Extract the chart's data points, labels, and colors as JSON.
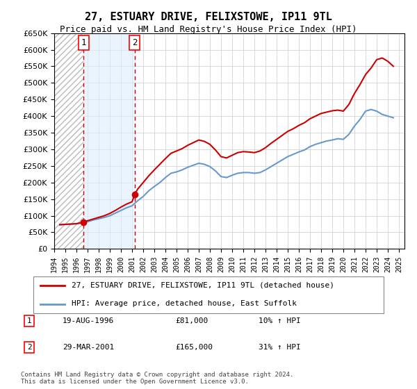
{
  "title": "27, ESTUARY DRIVE, FELIXSTOWE, IP11 9TL",
  "subtitle": "Price paid vs. HM Land Registry's House Price Index (HPI)",
  "ylim": [
    0,
    650000
  ],
  "yticks": [
    0,
    50000,
    100000,
    150000,
    200000,
    250000,
    300000,
    350000,
    400000,
    450000,
    500000,
    550000,
    600000,
    650000
  ],
  "xlim_start": 1994.0,
  "xlim_end": 2025.5,
  "purchase_dates": [
    1996.637,
    2001.247
  ],
  "purchase_prices": [
    81000,
    165000
  ],
  "purchase_labels": [
    "1",
    "2"
  ],
  "purchase_info": [
    {
      "label": "1",
      "date": "19-AUG-1996",
      "price": "£81,000",
      "hpi": "10% ↑ HPI"
    },
    {
      "label": "2",
      "date": "29-MAR-2001",
      "price": "£165,000",
      "hpi": "31% ↑ HPI"
    }
  ],
  "hpi_years": [
    1994.5,
    1995.0,
    1995.5,
    1996.0,
    1996.5,
    1997.0,
    1997.5,
    1998.0,
    1998.5,
    1999.0,
    1999.5,
    2000.0,
    2000.5,
    2001.0,
    2001.5,
    2002.0,
    2002.5,
    2003.0,
    2003.5,
    2004.0,
    2004.5,
    2005.0,
    2005.5,
    2006.0,
    2006.5,
    2007.0,
    2007.5,
    2008.0,
    2008.5,
    2009.0,
    2009.5,
    2010.0,
    2010.5,
    2011.0,
    2011.5,
    2012.0,
    2012.5,
    2013.0,
    2013.5,
    2014.0,
    2014.5,
    2015.0,
    2015.5,
    2016.0,
    2016.5,
    2017.0,
    2017.5,
    2018.0,
    2018.5,
    2019.0,
    2019.5,
    2020.0,
    2020.5,
    2021.0,
    2021.5,
    2022.0,
    2022.5,
    2023.0,
    2023.5,
    2024.0,
    2024.5
  ],
  "hpi_values": [
    73000,
    74000,
    75000,
    76000,
    78000,
    82000,
    87000,
    91000,
    95000,
    100000,
    108000,
    116000,
    124000,
    130000,
    145000,
    158000,
    175000,
    188000,
    200000,
    215000,
    228000,
    232000,
    238000,
    246000,
    252000,
    258000,
    255000,
    248000,
    235000,
    218000,
    215000,
    222000,
    228000,
    230000,
    230000,
    228000,
    230000,
    238000,
    248000,
    258000,
    268000,
    278000,
    285000,
    292000,
    298000,
    308000,
    315000,
    320000,
    325000,
    328000,
    332000,
    330000,
    345000,
    370000,
    390000,
    415000,
    420000,
    415000,
    405000,
    400000,
    395000
  ],
  "property_years": [
    1994.5,
    1995.0,
    1995.5,
    1996.0,
    1996.637,
    1997.0,
    1997.5,
    1998.0,
    1998.5,
    1999.0,
    1999.5,
    2000.0,
    2000.5,
    2001.0,
    2001.247,
    2001.5,
    2002.0,
    2002.5,
    2003.0,
    2003.5,
    2004.0,
    2004.5,
    2005.0,
    2005.5,
    2006.0,
    2006.5,
    2007.0,
    2007.5,
    2008.0,
    2008.5,
    2009.0,
    2009.5,
    2010.0,
    2010.5,
    2011.0,
    2011.5,
    2012.0,
    2012.5,
    2013.0,
    2013.5,
    2014.0,
    2014.5,
    2015.0,
    2015.5,
    2016.0,
    2016.5,
    2017.0,
    2017.5,
    2018.0,
    2018.5,
    2019.0,
    2019.5,
    2020.0,
    2020.5,
    2021.0,
    2021.5,
    2022.0,
    2022.5,
    2023.0,
    2023.5,
    2024.0,
    2024.5
  ],
  "property_values": [
    73000,
    74000,
    75000,
    76000,
    81000,
    85000,
    90000,
    95000,
    100000,
    107000,
    116000,
    126000,
    135000,
    142000,
    165000,
    180000,
    200000,
    220000,
    238000,
    255000,
    272000,
    288000,
    295000,
    302000,
    312000,
    320000,
    328000,
    324000,
    315000,
    298000,
    278000,
    274000,
    282000,
    290000,
    293000,
    292000,
    290000,
    295000,
    305000,
    318000,
    330000,
    342000,
    354000,
    362000,
    372000,
    380000,
    392000,
    400000,
    408000,
    412000,
    416000,
    418000,
    415000,
    435000,
    468000,
    495000,
    525000,
    545000,
    570000,
    575000,
    565000,
    550000
  ],
  "line_color_property": "#cc0000",
  "line_color_hpi": "#6699cc",
  "background_color": "#ffffff",
  "vline_color": "#cc0000",
  "shade_color": "#ddeeff",
  "legend_label_property": "27, ESTUARY DRIVE, FELIXSTOWE, IP11 9TL (detached house)",
  "legend_label_hpi": "HPI: Average price, detached house, East Suffolk",
  "footnote": "Contains HM Land Registry data © Crown copyright and database right 2024.\nThis data is licensed under the Open Government Licence v3.0.",
  "xtick_years": [
    1994,
    1995,
    1996,
    1997,
    1998,
    1999,
    2000,
    2001,
    2002,
    2003,
    2004,
    2005,
    2006,
    2007,
    2008,
    2009,
    2010,
    2011,
    2012,
    2013,
    2014,
    2015,
    2016,
    2017,
    2018,
    2019,
    2020,
    2021,
    2022,
    2023,
    2024,
    2025
  ]
}
